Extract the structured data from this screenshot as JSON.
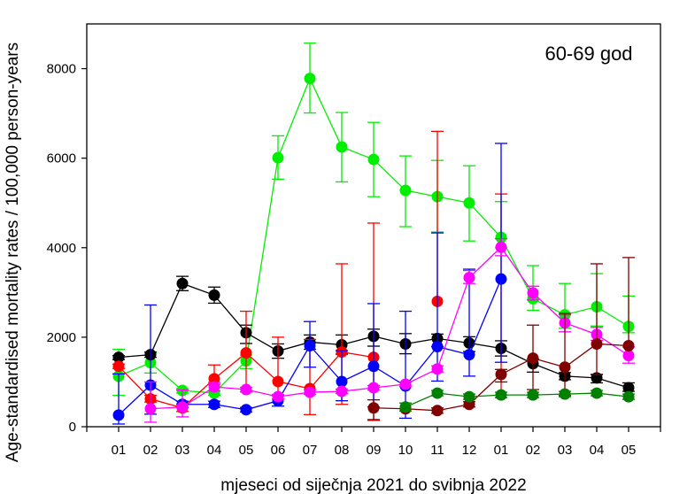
{
  "chart_data": {
    "type": "line",
    "title": "",
    "annotation": "60-69 god",
    "xlabel": "mjeseci od siječnja 2021 do svibnja 2022",
    "ylabel": "Age-standardised mortality rates / 100,000 person-years",
    "categories": [
      "01",
      "02",
      "03",
      "04",
      "05",
      "06",
      "07",
      "08",
      "09",
      "10",
      "11",
      "12",
      "01",
      "02",
      "03",
      "04",
      "05"
    ],
    "ylim": [
      0,
      9000
    ],
    "yticks": [
      0,
      2000,
      4000,
      6000,
      8000
    ],
    "ytick_labels": [
      "0",
      "2000",
      "4000",
      "6000",
      "8000"
    ],
    "grid": false,
    "legend": "none",
    "series": [
      {
        "name": "green",
        "color": "#00ee00",
        "values": [
          1130,
          1430,
          810,
          750,
          1470,
          6010,
          7780,
          6250,
          5970,
          5280,
          5140,
          5000,
          4230,
          2860,
          2500,
          2680,
          2240
        ],
        "err_low": [
          700,
          1200,
          750,
          700,
          1300,
          5530,
          7010,
          5470,
          5140,
          4470,
          4350,
          4150,
          4000,
          2600,
          2200,
          2250,
          2100
        ],
        "err_high": [
          1730,
          1650,
          850,
          800,
          1600,
          6500,
          8570,
          7020,
          6800,
          6050,
          5950,
          5830,
          5030,
          3600,
          3200,
          3420,
          2920
        ]
      },
      {
        "name": "black",
        "color": "#000000",
        "values": [
          1550,
          1610,
          3200,
          2940,
          2100,
          1690,
          1890,
          1830,
          2020,
          1850,
          1970,
          1870,
          1750,
          1410,
          1130,
          1090,
          870
        ],
        "err_low": [
          1500,
          1550,
          3040,
          2760,
          1860,
          1530,
          1730,
          1620,
          1800,
          1630,
          1790,
          1680,
          1580,
          1220,
          1050,
          980,
          790
        ],
        "err_high": [
          1590,
          1670,
          3360,
          3120,
          2270,
          1850,
          2050,
          2050,
          2180,
          2080,
          2070,
          2010,
          1920,
          1510,
          1210,
          1170,
          980
        ]
      },
      {
        "name": "red",
        "color": "#ff0000",
        "values": [
          1350,
          620,
          420,
          1070,
          1650,
          1010,
          850,
          1670,
          1550,
          null,
          2800,
          null,
          null,
          null,
          null,
          null,
          null
        ],
        "err_low": [
          1300,
          550,
          340,
          950,
          780,
          700,
          270,
          500,
          140,
          null,
          null,
          null,
          650,
          null,
          null,
          null,
          null
        ],
        "err_high": [
          1400,
          700,
          500,
          1380,
          2580,
          2000,
          1950,
          3640,
          4550,
          null,
          6600,
          null,
          5200,
          null,
          null,
          null,
          null
        ]
      },
      {
        "name": "blue",
        "color": "#0000ff",
        "values": [
          260,
          930,
          500,
          500,
          380,
          580,
          1810,
          1010,
          1350,
          910,
          1790,
          1610,
          3300,
          null,
          null,
          null,
          null
        ],
        "err_low": [
          60,
          280,
          430,
          430,
          330,
          460,
          1330,
          580,
          440,
          190,
          1020,
          1130,
          1440,
          null,
          null,
          null,
          null
        ],
        "err_high": [
          1180,
          2720,
          570,
          570,
          430,
          700,
          2350,
          1700,
          2750,
          2580,
          4330,
          3520,
          6330,
          null,
          null,
          null,
          null
        ]
      },
      {
        "name": "magenta",
        "color": "#ff00ff",
        "values": [
          null,
          400,
          440,
          890,
          830,
          670,
          770,
          790,
          870,
          950,
          1290,
          3330,
          4010,
          2990,
          2320,
          2060,
          1590
        ],
        "err_low": [
          null,
          100,
          220,
          800,
          780,
          620,
          720,
          740,
          820,
          900,
          1220,
          3200,
          3820,
          2830,
          2120,
          1930,
          1420
        ],
        "err_high": [
          null,
          1000,
          820,
          990,
          880,
          720,
          820,
          840,
          920,
          1000,
          1360,
          3490,
          4200,
          3140,
          2500,
          2220,
          1780
        ]
      },
      {
        "name": "dark red",
        "color": "#800000",
        "values": [
          null,
          null,
          null,
          null,
          null,
          null,
          null,
          null,
          420,
          400,
          360,
          500,
          1170,
          1530,
          1330,
          1850,
          1810
        ],
        "err_low": [
          null,
          null,
          null,
          null,
          null,
          null,
          null,
          null,
          160,
          null,
          300,
          440,
          1000,
          830,
          700,
          1160,
          null
        ],
        "err_high": [
          null,
          null,
          null,
          null,
          null,
          null,
          null,
          null,
          600,
          null,
          420,
          560,
          1280,
          2270,
          2530,
          3640,
          3780
        ]
      },
      {
        "name": "dark green",
        "color": "#008000",
        "values": [
          null,
          null,
          null,
          null,
          null,
          null,
          null,
          null,
          null,
          440,
          750,
          670,
          710,
          710,
          730,
          750,
          670
        ],
        "err_low": [
          null,
          null,
          null,
          null,
          null,
          null,
          null,
          null,
          null,
          350,
          690,
          610,
          650,
          650,
          670,
          690,
          610
        ],
        "err_high": [
          null,
          null,
          null,
          null,
          null,
          null,
          null,
          null,
          null,
          530,
          810,
          730,
          770,
          770,
          790,
          810,
          730
        ]
      }
    ]
  }
}
